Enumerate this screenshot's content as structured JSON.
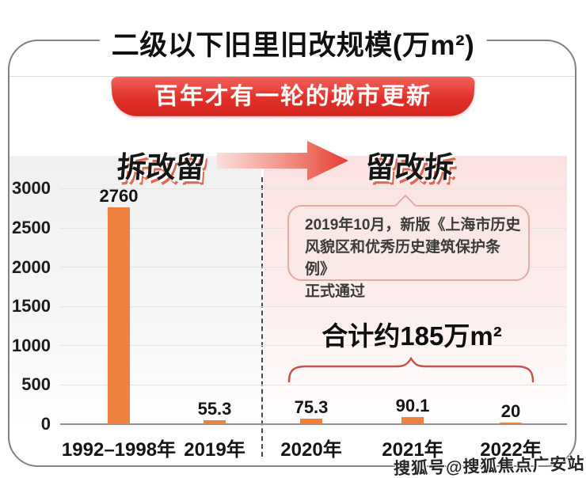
{
  "title": "二级以下旧里旧改规模(万m²)",
  "banner": {
    "text": "百年才有一轮的城市更新",
    "color": "#d92b24"
  },
  "phase": {
    "left": "拆改留",
    "right": "留改拆"
  },
  "annotation": {
    "text": "2019年10月，新版《上海市历史\n风貌区和优秀历史建筑保护条例》\n正式通过"
  },
  "total": {
    "text": "合计约185万m²"
  },
  "watermark": {
    "text": "搜狐号@搜狐焦点广安站"
  },
  "colors": {
    "banner_red": "#d92b24",
    "bar_orange": "#ee8040",
    "bubble_bg": "#fae8e6",
    "bubble_border": "#e5aba3",
    "brace": "#c2544a",
    "arrow_red": "#e63e32"
  },
  "chart_data": {
    "type": "bar",
    "title": "二级以下旧里旧改规模(万m²)",
    "categories": [
      "1992–1998年",
      "2019年",
      "2020年",
      "2021年",
      "2022年"
    ],
    "values": [
      2760,
      55.3,
      75.3,
      90.1,
      20
    ],
    "value_labels": [
      "2760",
      "55.3",
      "75.3",
      "90.1",
      "20"
    ],
    "xlabel": "",
    "ylabel": "",
    "ylim": [
      0,
      3000
    ],
    "yticks": [
      0,
      500,
      1000,
      1500,
      2000,
      2500,
      3000
    ],
    "grid": true,
    "legend": "none",
    "bar_color": "#ee8040",
    "group_divider_after_index": 1,
    "annotations": [
      "2019年10月，新版《上海市历史风貌区和优秀历史建筑保护条例》正式通过",
      "合计约185万m²"
    ]
  }
}
